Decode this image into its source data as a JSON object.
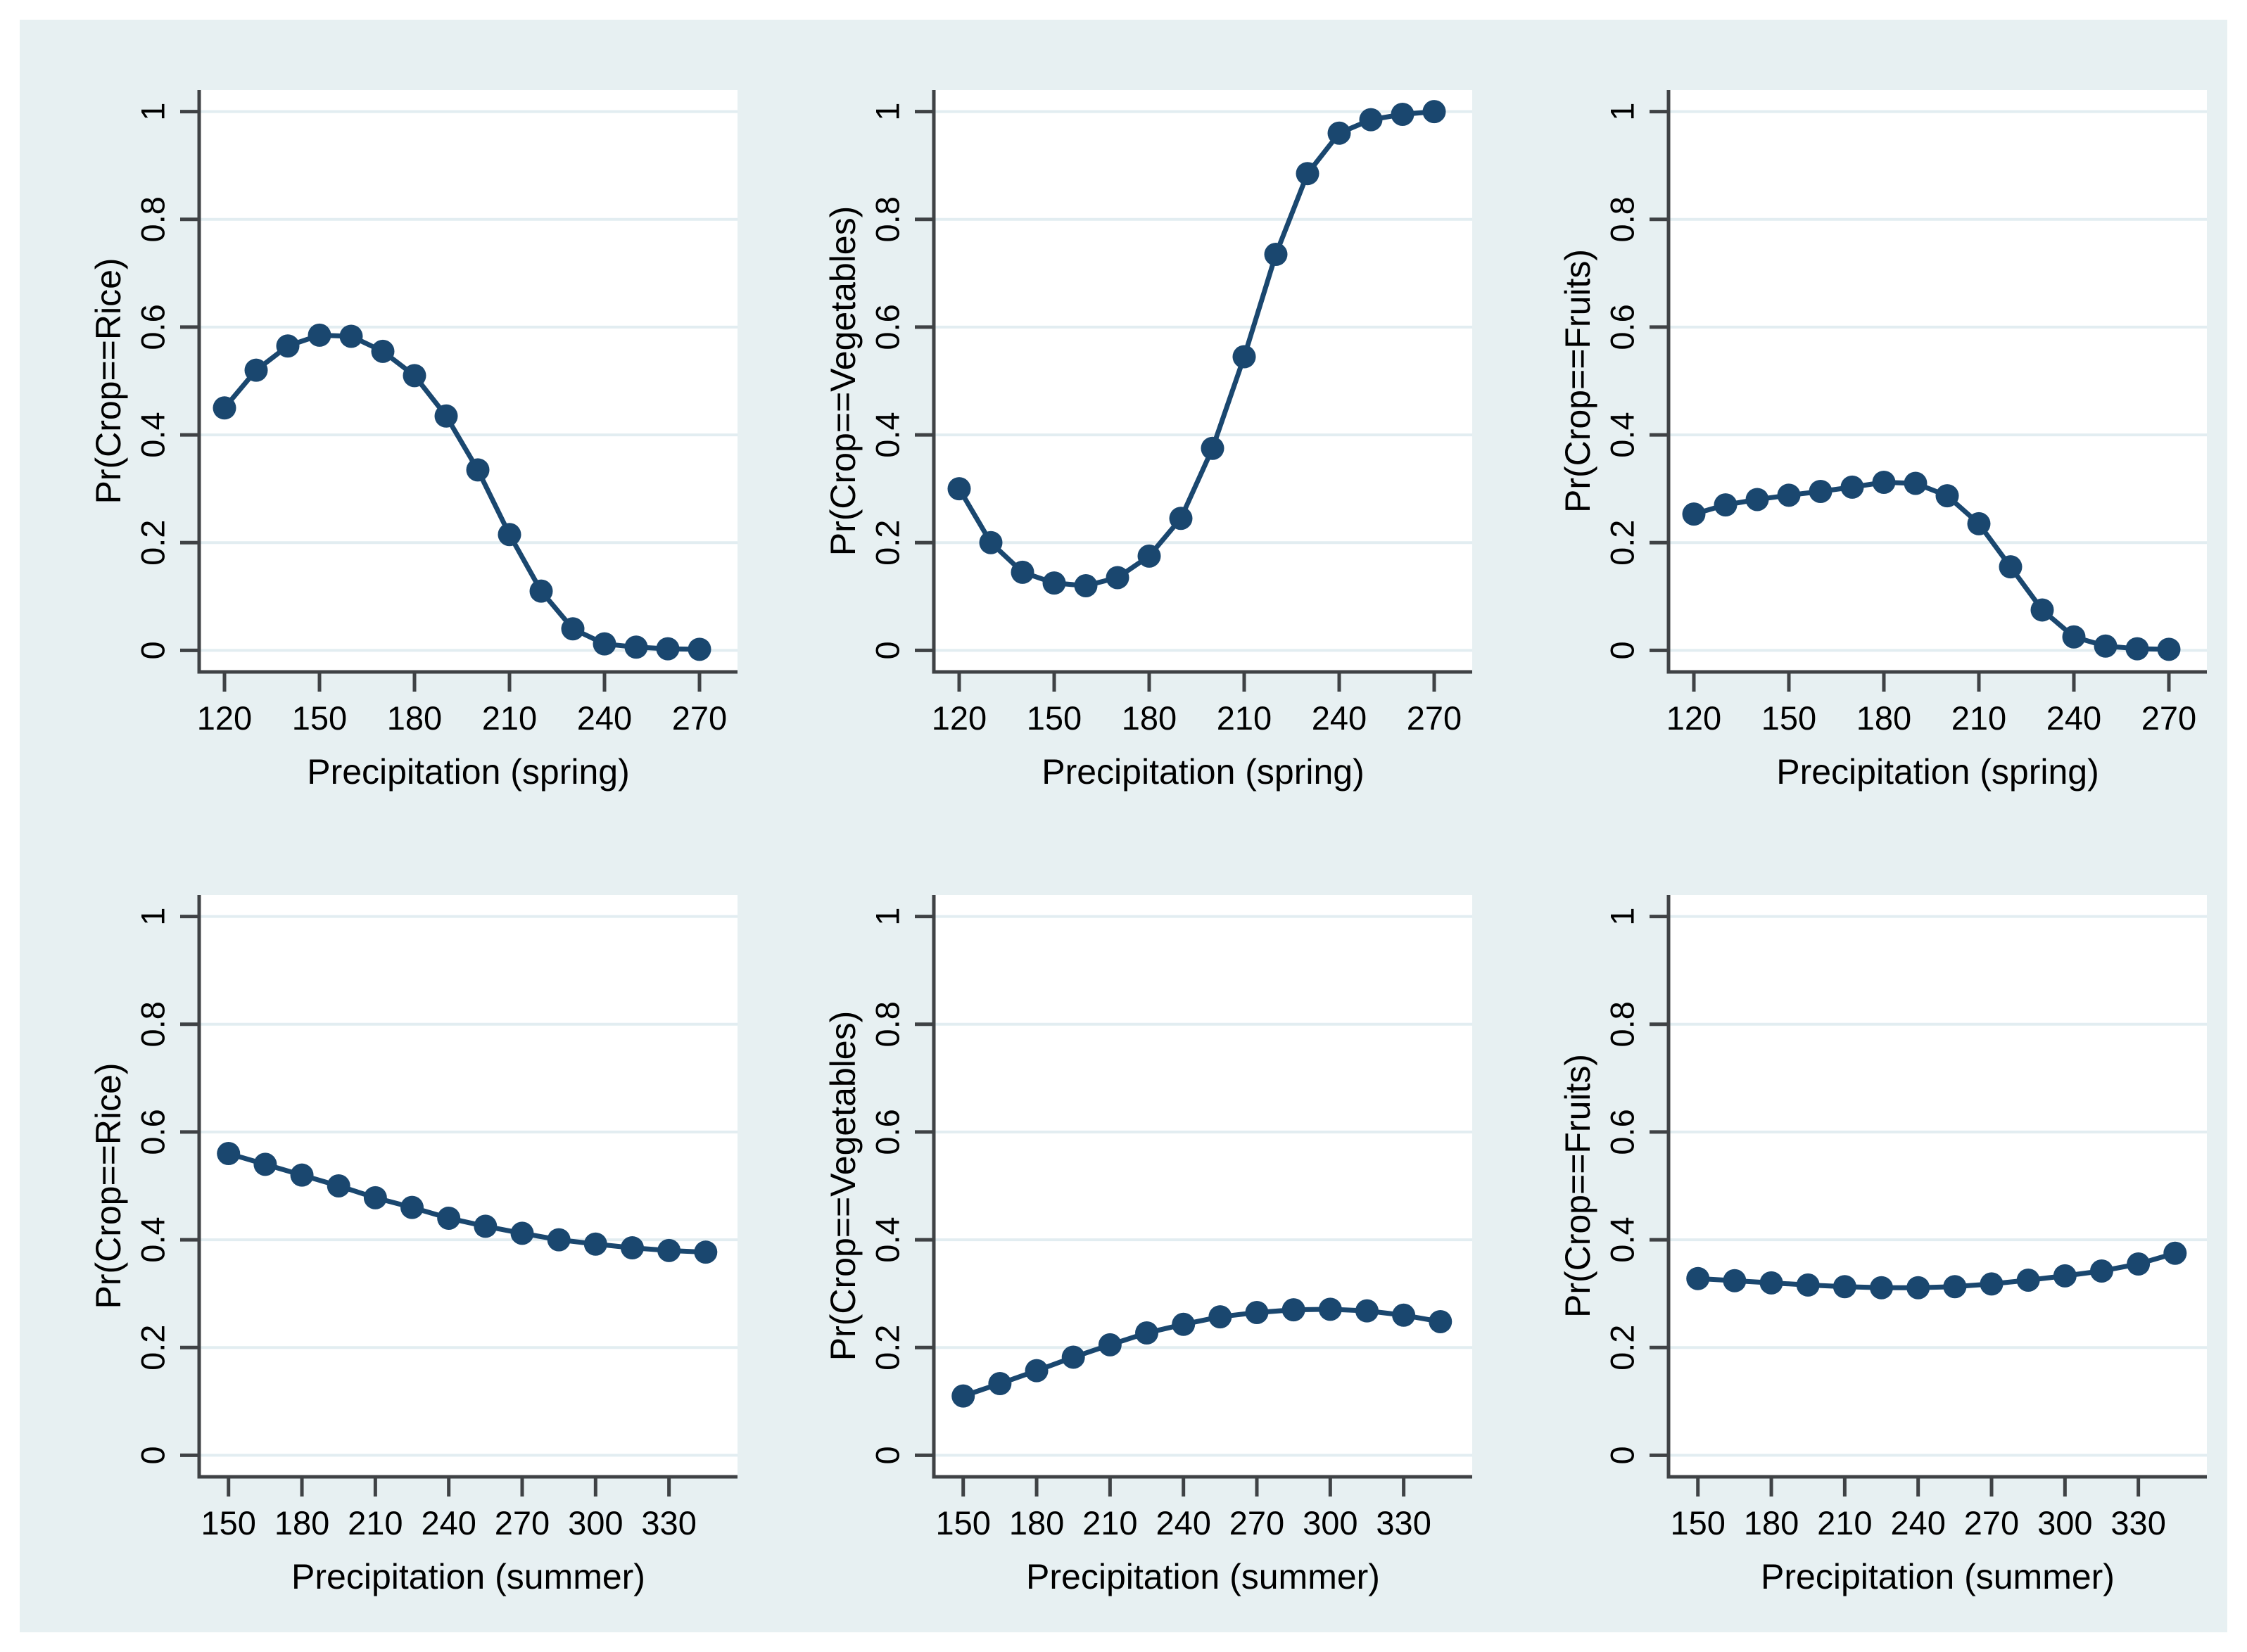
{
  "figure": {
    "description": "Grid of six predicted-probability line plots (3 crops x 2 seasons)",
    "rows": 2,
    "cols": 3
  },
  "colors": {
    "page_bg": "#ffffff",
    "canvas_bg": "#e7f0f2",
    "plot_bg": "#ffffff",
    "grid_line": "#e2edf1",
    "axis_line": "#3f4245",
    "text": "#000000",
    "series": "#1a476f"
  },
  "chart_data": [
    {
      "type": "line",
      "name": "rice-spring",
      "ylabel": "Pr(Crop==Rice)",
      "xlabel": "Precipitation (spring)",
      "x": [
        120,
        130,
        140,
        150,
        160,
        170,
        180,
        190,
        200,
        210,
        220,
        230,
        240,
        250,
        260,
        270
      ],
      "y": [
        0.45,
        0.52,
        0.565,
        0.585,
        0.583,
        0.555,
        0.51,
        0.435,
        0.335,
        0.215,
        0.11,
        0.04,
        0.012,
        0.006,
        0.003,
        0.002
      ],
      "xticks": [
        120,
        150,
        180,
        210,
        240,
        270
      ],
      "yticks": [
        0,
        0.2,
        0.4,
        0.6,
        0.8,
        1
      ],
      "ytick_labels": [
        "0",
        "0.2",
        "0.4",
        "0.6",
        "0.8",
        "1"
      ],
      "xlim": [
        112,
        282
      ],
      "ylim": [
        -0.04,
        1.04
      ],
      "grid": "horizontal",
      "legend": "none",
      "marker": "circle"
    },
    {
      "type": "line",
      "name": "vegetables-spring",
      "ylabel": "Pr(Crop==Vegetables)",
      "xlabel": "Precipitation (spring)",
      "x": [
        120,
        130,
        140,
        150,
        160,
        170,
        180,
        190,
        200,
        210,
        220,
        230,
        240,
        250,
        260,
        270
      ],
      "y": [
        0.3,
        0.2,
        0.145,
        0.125,
        0.12,
        0.135,
        0.175,
        0.245,
        0.375,
        0.545,
        0.735,
        0.885,
        0.96,
        0.985,
        0.995,
        1.0
      ],
      "xticks": [
        120,
        150,
        180,
        210,
        240,
        270
      ],
      "yticks": [
        0,
        0.2,
        0.4,
        0.6,
        0.8,
        1
      ],
      "ytick_labels": [
        "0",
        "0.2",
        "0.4",
        "0.6",
        "0.8",
        "1"
      ],
      "xlim": [
        112,
        282
      ],
      "ylim": [
        -0.04,
        1.04
      ],
      "grid": "horizontal",
      "legend": "none",
      "marker": "circle"
    },
    {
      "type": "line",
      "name": "fruits-spring",
      "ylabel": "Pr(Crop==Fruits)",
      "xlabel": "Precipitation (spring)",
      "x": [
        120,
        130,
        140,
        150,
        160,
        170,
        180,
        190,
        200,
        210,
        220,
        230,
        240,
        250,
        260,
        270
      ],
      "y": [
        0.253,
        0.27,
        0.28,
        0.288,
        0.295,
        0.303,
        0.312,
        0.31,
        0.287,
        0.235,
        0.155,
        0.075,
        0.025,
        0.008,
        0.003,
        0.002
      ],
      "xticks": [
        120,
        150,
        180,
        210,
        240,
        270
      ],
      "yticks": [
        0,
        0.2,
        0.4,
        0.6,
        0.8,
        1
      ],
      "ytick_labels": [
        "0",
        "0.2",
        "0.4",
        "0.6",
        "0.8",
        "1"
      ],
      "xlim": [
        112,
        282
      ],
      "ylim": [
        -0.04,
        1.04
      ],
      "grid": "horizontal",
      "legend": "none",
      "marker": "circle"
    },
    {
      "type": "line",
      "name": "rice-summer",
      "ylabel": "Pr(Crop==Rice)",
      "xlabel": "Precipitation (summer)",
      "x": [
        150,
        165,
        180,
        195,
        210,
        225,
        240,
        255,
        270,
        285,
        300,
        315,
        330,
        345
      ],
      "y": [
        0.56,
        0.54,
        0.52,
        0.5,
        0.478,
        0.46,
        0.44,
        0.425,
        0.412,
        0.4,
        0.392,
        0.385,
        0.38,
        0.377
      ],
      "xticks": [
        150,
        180,
        210,
        240,
        270,
        300,
        330
      ],
      "yticks": [
        0,
        0.2,
        0.4,
        0.6,
        0.8,
        1
      ],
      "ytick_labels": [
        "0",
        "0.2",
        "0.4",
        "0.6",
        "0.8",
        "1"
      ],
      "xlim": [
        138,
        358
      ],
      "ylim": [
        -0.04,
        1.04
      ],
      "grid": "horizontal",
      "legend": "none",
      "marker": "circle"
    },
    {
      "type": "line",
      "name": "vegetables-summer",
      "ylabel": "Pr(Crop==Vegetables)",
      "xlabel": "Precipitation (summer)",
      "x": [
        150,
        165,
        180,
        195,
        210,
        225,
        240,
        255,
        270,
        285,
        300,
        315,
        330,
        345
      ],
      "y": [
        0.11,
        0.133,
        0.157,
        0.182,
        0.205,
        0.227,
        0.243,
        0.257,
        0.265,
        0.27,
        0.271,
        0.268,
        0.26,
        0.248
      ],
      "xticks": [
        150,
        180,
        210,
        240,
        270,
        300,
        330
      ],
      "yticks": [
        0,
        0.2,
        0.4,
        0.6,
        0.8,
        1
      ],
      "ytick_labels": [
        "0",
        "0.2",
        "0.4",
        "0.6",
        "0.8",
        "1"
      ],
      "xlim": [
        138,
        358
      ],
      "ylim": [
        -0.04,
        1.04
      ],
      "grid": "horizontal",
      "legend": "none",
      "marker": "circle"
    },
    {
      "type": "line",
      "name": "fruits-summer",
      "ylabel": "Pr(Crop==Fruits)",
      "xlabel": "Precipitation (summer)",
      "x": [
        150,
        165,
        180,
        195,
        210,
        225,
        240,
        255,
        270,
        285,
        300,
        315,
        330,
        345
      ],
      "y": [
        0.328,
        0.324,
        0.32,
        0.316,
        0.313,
        0.311,
        0.311,
        0.313,
        0.318,
        0.325,
        0.333,
        0.342,
        0.355,
        0.375
      ],
      "xticks": [
        150,
        180,
        210,
        240,
        270,
        300,
        330
      ],
      "yticks": [
        0,
        0.2,
        0.4,
        0.6,
        0.8,
        1
      ],
      "ytick_labels": [
        "0",
        "0.2",
        "0.4",
        "0.6",
        "0.8",
        "1"
      ],
      "xlim": [
        138,
        358
      ],
      "ylim": [
        -0.04,
        1.04
      ],
      "grid": "horizontal",
      "legend": "none",
      "marker": "circle"
    }
  ]
}
